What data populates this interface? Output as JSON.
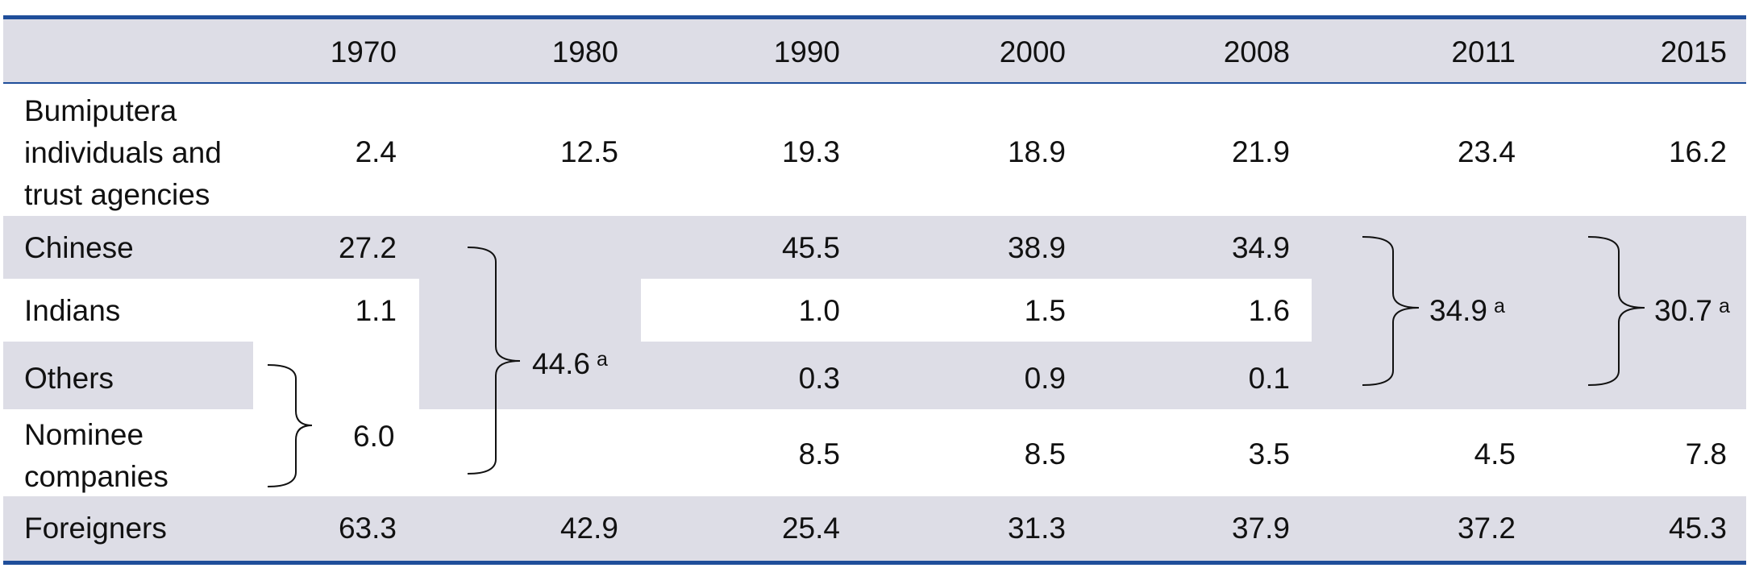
{
  "table": {
    "years": [
      "1970",
      "1980",
      "1990",
      "2000",
      "2008",
      "2011",
      "2015"
    ],
    "rows": {
      "bumiputera": {
        "label_lines": [
          "Bumiputera",
          "individuals and",
          "trust agencies"
        ],
        "values": [
          "2.4",
          "12.5",
          "19.3",
          "18.9",
          "21.9",
          "23.4",
          "16.2"
        ]
      },
      "chinese": {
        "label": "Chinese",
        "v1970": "27.2",
        "v1990": "45.5",
        "v2000": "38.9",
        "v2008": "34.9"
      },
      "indians": {
        "label": "Indians",
        "v1970": "1.1",
        "v1990": "1.0",
        "v2000": "1.5",
        "v2008": "1.6"
      },
      "others": {
        "label": "Others",
        "v1990": "0.3",
        "v2000": "0.9",
        "v2008": "0.1"
      },
      "nominee": {
        "label_lines": [
          "Nominee",
          "companies"
        ],
        "v1990": "8.5",
        "v2000": "8.5",
        "v2008": "3.5",
        "v2011": "4.5",
        "v2015": "7.8"
      },
      "foreigners": {
        "label": "Foreigners",
        "values": [
          "63.3",
          "42.9",
          "25.4",
          "31.3",
          "37.9",
          "37.2",
          "45.3"
        ]
      }
    },
    "merged": {
      "others_nominee_1970": "6.0",
      "group_1980": "44.6",
      "group_2011": "34.9",
      "group_2015": "30.7",
      "footnote_mark": "a"
    },
    "colors": {
      "rule": "#1f4e9a",
      "band": "#dddde6"
    }
  }
}
